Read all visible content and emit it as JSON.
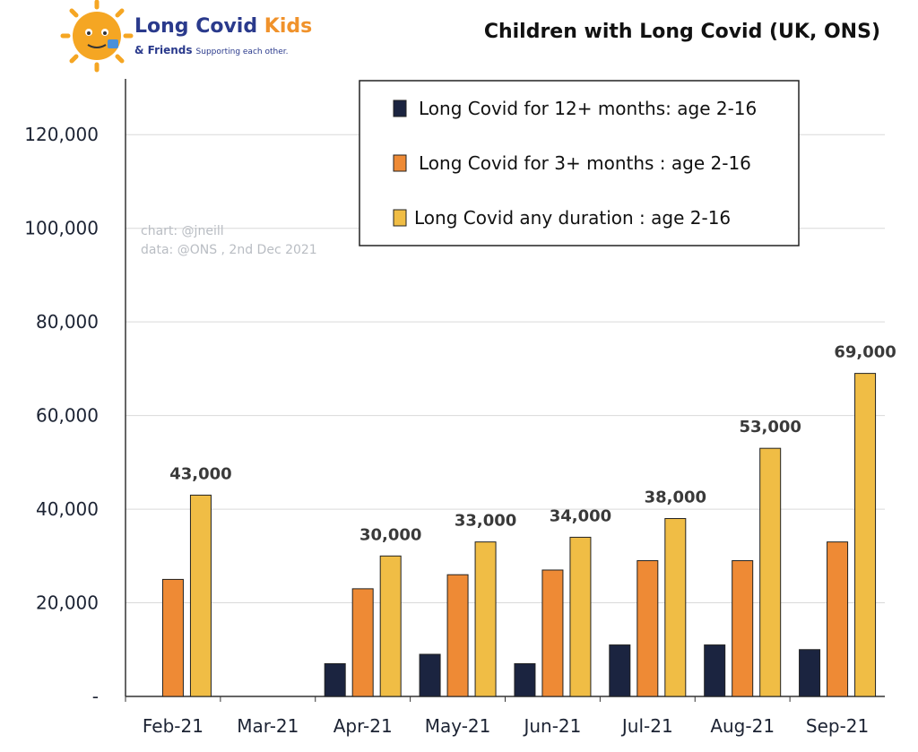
{
  "logo": {
    "name_main": "Long Covid ",
    "name_accent": "Kids",
    "subline": "& Friends",
    "tagline": "Supporting each other."
  },
  "credits": {
    "chart": "chart: @jneill",
    "data": "data: @ONS , 2nd Dec 2021"
  },
  "colors": {
    "series_12m": "#1b2440",
    "series_3m": "#ee8a35",
    "series_any": "#f0bd45",
    "grid": "#d9d9d9",
    "axis": "#333333"
  },
  "chart_data": {
    "type": "bar",
    "title": "Children with Long Covid (UK, ONS)",
    "xlabel": "",
    "ylabel": "",
    "ylim": [
      0,
      130000
    ],
    "yticks": [
      0,
      20000,
      40000,
      60000,
      80000,
      100000,
      120000
    ],
    "ytick_labels": [
      "-",
      "20,000",
      "40,000",
      "60,000",
      "80,000",
      "100,000",
      "120,000"
    ],
    "grid": true,
    "legend_position": "top-right",
    "categories": [
      "Feb-21",
      "Mar-21",
      "Apr-21",
      "May-21",
      "Jun-21",
      "Jul-21",
      "Aug-21",
      "Sep-21"
    ],
    "series": [
      {
        "name": "Long Covid for 12+ months: age 2-16",
        "color": "#1b2440",
        "values": [
          null,
          null,
          7000,
          9000,
          7000,
          11000,
          11000,
          10000
        ]
      },
      {
        "name": "Long Covid for 3+ months : age 2-16",
        "color": "#ee8a35",
        "values": [
          25000,
          null,
          23000,
          26000,
          27000,
          29000,
          29000,
          33000
        ]
      },
      {
        "name": "Long Covid any duration : age 2-16",
        "color": "#f0bd45",
        "values": [
          43000,
          null,
          30000,
          33000,
          34000,
          38000,
          53000,
          69000
        ]
      }
    ],
    "data_labels": {
      "series_index": 2,
      "labels": [
        "43,000",
        "",
        "30,000",
        "33,000",
        "34,000",
        "38,000",
        "53,000",
        "69,000"
      ]
    }
  }
}
